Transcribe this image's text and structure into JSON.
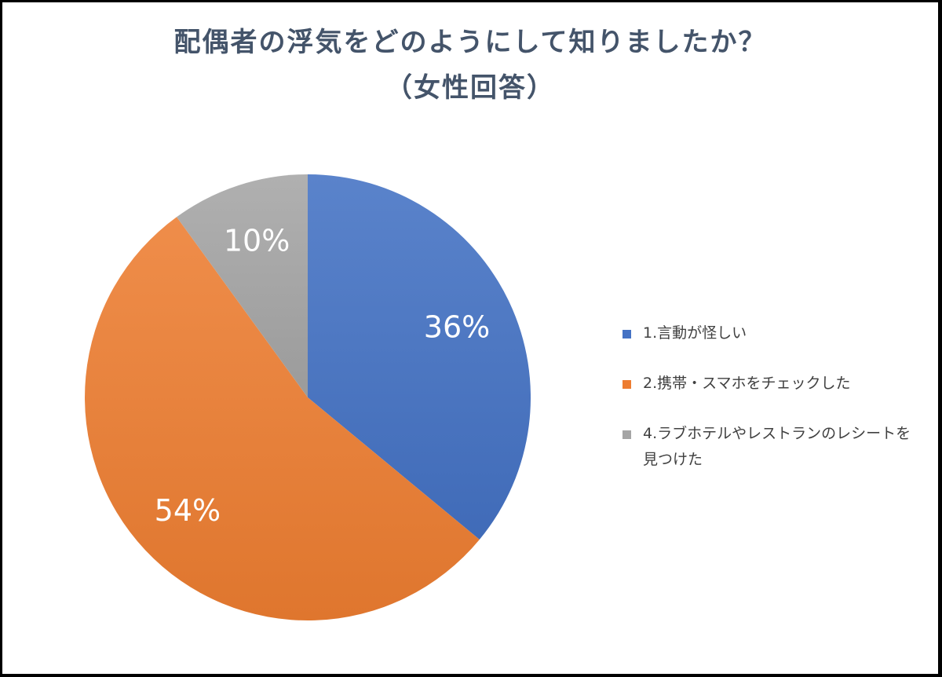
{
  "chart_data": {
    "type": "pie",
    "title": "配偶者の浮気をどのようにして知りましたか？",
    "subtitle": "（女性回答）",
    "legend_position": "right",
    "slices": [
      {
        "label": "1.言動が怪しい",
        "value": 36,
        "display": "36%",
        "color": "#4472c4"
      },
      {
        "label": "2.携帯・スマホをチェックした",
        "value": 54,
        "display": "54%",
        "color": "#ed7d31"
      },
      {
        "label": "4.ラブホテルやレストランのレシートを見つけた",
        "value": 10,
        "display": "10%",
        "color": "#a5a5a5"
      }
    ]
  }
}
